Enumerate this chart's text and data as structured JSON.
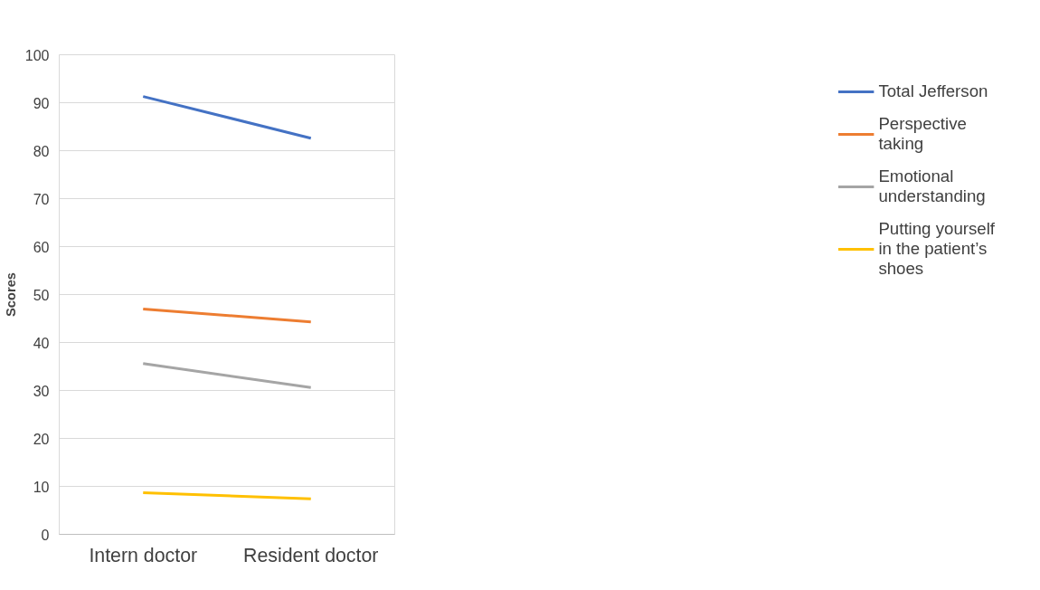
{
  "chart_data": {
    "type": "line",
    "ylabel": "Scores",
    "categories": [
      "Intern doctor",
      "Resident doctor"
    ],
    "series": [
      {
        "name": "Total Jefferson",
        "color": "#4472c4",
        "values": [
          91.3,
          82.6
        ]
      },
      {
        "name": "Perspective taking",
        "color": "#ed7d31",
        "values": [
          47.0,
          44.3
        ]
      },
      {
        "name": "Emotional understanding",
        "color": "#a5a5a5",
        "values": [
          35.6,
          30.6
        ]
      },
      {
        "name": "Putting yourself in the patient’s shoes",
        "color": "#ffc000",
        "values": [
          8.7,
          7.4
        ]
      }
    ],
    "ylim": [
      0,
      100
    ],
    "yticks": [
      0,
      10,
      20,
      30,
      40,
      50,
      60,
      70,
      80,
      90,
      100
    ],
    "grid": "y",
    "legend": "right",
    "marker": "none",
    "line_style": "solid"
  }
}
